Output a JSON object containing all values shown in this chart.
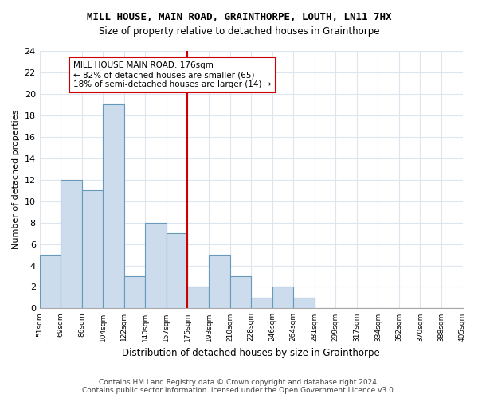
{
  "title": "MILL HOUSE, MAIN ROAD, GRAINTHORPE, LOUTH, LN11 7HX",
  "subtitle": "Size of property relative to detached houses in Grainthorpe",
  "xlabel": "Distribution of detached houses by size in Grainthorpe",
  "ylabel": "Number of detached properties",
  "bar_values": [
    5,
    12,
    11,
    19,
    3,
    8,
    7,
    2,
    5,
    3,
    1,
    2,
    1,
    0,
    0,
    0,
    0,
    0,
    0,
    0
  ],
  "bin_labels": [
    "51sqm",
    "69sqm",
    "86sqm",
    "104sqm",
    "122sqm",
    "140sqm",
    "157sqm",
    "175sqm",
    "193sqm",
    "210sqm",
    "228sqm",
    "246sqm",
    "264sqm",
    "281sqm",
    "299sqm",
    "317sqm",
    "334sqm",
    "352sqm",
    "370sqm",
    "388sqm",
    "405sqm"
  ],
  "bar_color": "#ccdcec",
  "bar_edge_color": "#6699bb",
  "grid_color": "#dde5ee",
  "marker_line_color": "#cc0000",
  "annotation_text": "MILL HOUSE MAIN ROAD: 176sqm\n← 82% of detached houses are smaller (65)\n18% of semi-detached houses are larger (14) →",
  "annotation_box_edge_color": "#cc0000",
  "ylim": [
    0,
    24
  ],
  "yticks": [
    0,
    2,
    4,
    6,
    8,
    10,
    12,
    14,
    16,
    18,
    20,
    22,
    24
  ],
  "footer_line1": "Contains HM Land Registry data © Crown copyright and database right 2024.",
  "footer_line2": "Contains public sector information licensed under the Open Government Licence v3.0."
}
